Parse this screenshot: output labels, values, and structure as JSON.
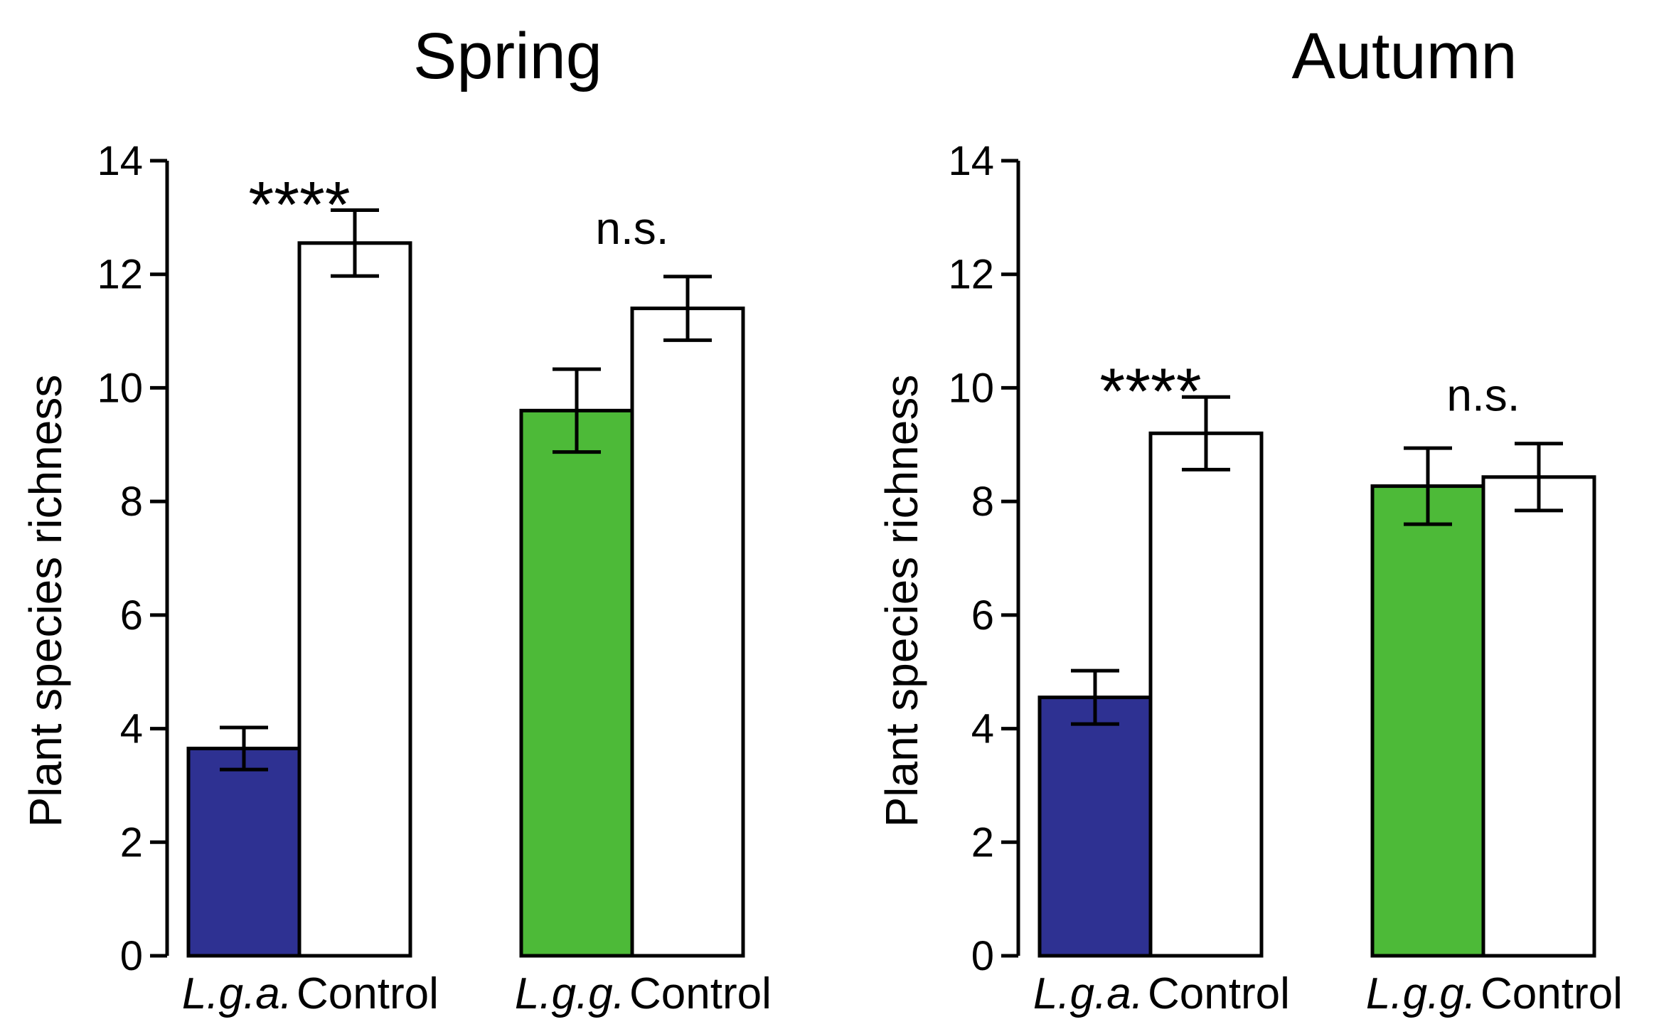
{
  "chart_data": [
    {
      "type": "bar",
      "title": "Spring",
      "ylabel": "Plant species richness",
      "ylim": [
        0,
        14
      ],
      "yticks": [
        "0",
        "2",
        "4",
        "6",
        "8",
        "10",
        "12",
        "14"
      ],
      "groups": [
        {
          "significance": "****",
          "bars": [
            {
              "label": "L.g.a.",
              "italic": true,
              "value": 3.65,
              "error": 0.37,
              "color": "#2e3192"
            },
            {
              "label": "Control",
              "italic": false,
              "value": 12.55,
              "error": 0.58,
              "color": "#ffffff"
            }
          ]
        },
        {
          "significance": "n.s.",
          "bars": [
            {
              "label": "L.g.g.",
              "italic": true,
              "value": 9.6,
              "error": 0.73,
              "color": "#4dba38"
            },
            {
              "label": "Control",
              "italic": false,
              "value": 11.4,
              "error": 0.56,
              "color": "#ffffff"
            }
          ]
        }
      ]
    },
    {
      "type": "bar",
      "title": "Autumn",
      "ylabel": "Plant species richness",
      "ylim": [
        0,
        14
      ],
      "yticks": [
        "0",
        "2",
        "4",
        "6",
        "8",
        "10",
        "12",
        "14"
      ],
      "groups": [
        {
          "significance": "****",
          "bars": [
            {
              "label": "L.g.a.",
              "italic": true,
              "value": 4.55,
              "error": 0.47,
              "color": "#2e3192"
            },
            {
              "label": "Control",
              "italic": false,
              "value": 9.2,
              "error": 0.64,
              "color": "#ffffff"
            }
          ]
        },
        {
          "significance": "n.s.",
          "bars": [
            {
              "label": "L.g.g.",
              "italic": true,
              "value": 8.27,
              "error": 0.67,
              "color": "#4dba38"
            },
            {
              "label": "Control",
              "italic": false,
              "value": 8.43,
              "error": 0.59,
              "color": "#ffffff"
            }
          ]
        }
      ]
    }
  ]
}
